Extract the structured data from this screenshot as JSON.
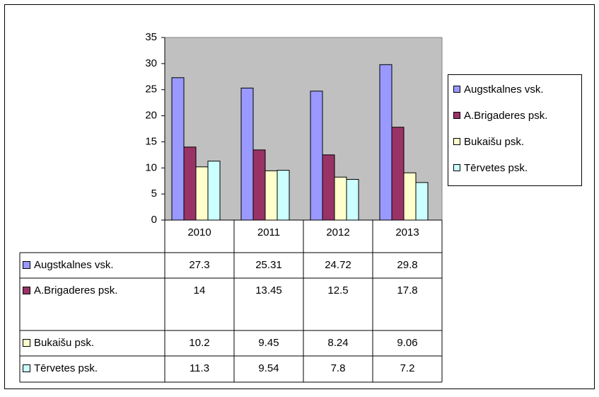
{
  "chart_data": {
    "type": "bar",
    "categories": [
      "2010",
      "2011",
      "2012",
      "2013"
    ],
    "series": [
      {
        "name": "Augstkalnes vsk.",
        "color": "#9999ff",
        "values": [
          27.3,
          25.31,
          24.72,
          29.8
        ]
      },
      {
        "name": "A.Brigaderes psk.",
        "color": "#993366",
        "values": [
          14,
          13.45,
          12.5,
          17.8
        ]
      },
      {
        "name": "Bukaišu psk.",
        "color": "#ffffcc",
        "values": [
          10.2,
          9.45,
          8.24,
          9.06
        ]
      },
      {
        "name": "Tērvetes psk.",
        "color": "#ccffff",
        "values": [
          11.3,
          9.54,
          7.8,
          7.2
        ]
      }
    ],
    "ylim": [
      0,
      35
    ],
    "yticks": [
      0,
      5,
      10,
      15,
      20,
      25,
      30,
      35
    ],
    "grid": false,
    "plot_background": "#c0c0c0",
    "legend": "right",
    "data_table": true
  }
}
